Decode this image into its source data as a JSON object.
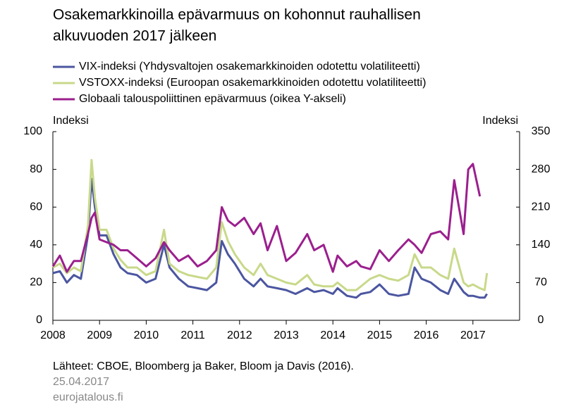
{
  "chart_data": {
    "type": "line",
    "title": [
      "Osakemarkkinoilla epävarmuus on kohonnut rauhallisen",
      "alkuvuoden 2017 jälkeen"
    ],
    "y_label": "Indeksi",
    "y2_label": "Indeksi",
    "source": "Lähteet: CBOE, Bloomberg ja Baker, Bloom ja Davis (2016).",
    "date": "25.04.2017",
    "site": "eurojatalous.fi",
    "x": [
      2008.0,
      2008.15,
      2008.3,
      2008.45,
      2008.6,
      2008.75,
      2008.83,
      2008.9,
      2009.0,
      2009.15,
      2009.3,
      2009.45,
      2009.6,
      2009.8,
      2010.0,
      2010.2,
      2010.38,
      2010.5,
      2010.7,
      2010.9,
      2011.1,
      2011.3,
      2011.5,
      2011.62,
      2011.75,
      2011.9,
      2012.1,
      2012.3,
      2012.45,
      2012.6,
      2012.8,
      2013.0,
      2013.2,
      2013.45,
      2013.6,
      2013.8,
      2014.0,
      2014.1,
      2014.3,
      2014.5,
      2014.6,
      2014.8,
      2015.0,
      2015.2,
      2015.4,
      2015.62,
      2015.75,
      2015.9,
      2016.1,
      2016.3,
      2016.47,
      2016.6,
      2016.8,
      2016.9,
      2017.0,
      2017.15,
      2017.25,
      2017.3
    ],
    "series": [
      {
        "name": "VIX-indeksi (Yhdysvaltojen osakemarkkinoiden odotettu volatiliteetti)",
        "color": "#4b56a0",
        "values": [
          25,
          26,
          20,
          24,
          22,
          45,
          75,
          60,
          45,
          45,
          35,
          28,
          25,
          24,
          20,
          22,
          40,
          28,
          22,
          18,
          17,
          16,
          20,
          42,
          35,
          30,
          22,
          18,
          22,
          18,
          17,
          16,
          14,
          17,
          15,
          16,
          14,
          17,
          13,
          12,
          14,
          15,
          19,
          14,
          13,
          14,
          28,
          22,
          20,
          16,
          14,
          22,
          15,
          13,
          13,
          12,
          12,
          14
        ]
      },
      {
        "name": "VSTOXX-indeksi (Euroopan osakemarkkinoiden odotettu volatiliteetti)",
        "color": "#c8d98a",
        "values": [
          28,
          30,
          25,
          28,
          26,
          50,
          85,
          65,
          48,
          48,
          38,
          32,
          28,
          28,
          24,
          26,
          48,
          30,
          26,
          24,
          23,
          22,
          28,
          52,
          42,
          35,
          28,
          24,
          30,
          24,
          22,
          20,
          19,
          24,
          19,
          18,
          18,
          20,
          16,
          16,
          18,
          22,
          24,
          22,
          21,
          24,
          35,
          28,
          28,
          24,
          22,
          38,
          20,
          18,
          19,
          17,
          16,
          25
        ]
      },
      {
        "name": "Globaali talouspoliittinen epävarmuus (oikea Y-akseli)",
        "color": "#9b1f8e",
        "axis": "y2",
        "values": [
          100,
          120,
          90,
          110,
          110,
          160,
          190,
          200,
          150,
          145,
          140,
          130,
          130,
          115,
          100,
          115,
          145,
          130,
          110,
          120,
          100,
          110,
          130,
          210,
          185,
          175,
          190,
          160,
          180,
          130,
          175,
          110,
          125,
          160,
          130,
          140,
          90,
          120,
          100,
          110,
          100,
          95,
          130,
          110,
          130,
          150,
          140,
          125,
          160,
          165,
          150,
          260,
          160,
          280,
          290,
          230,
          null,
          null
        ]
      }
    ],
    "xlim": [
      2008,
      2018
    ],
    "xticks": [
      2008,
      2009,
      2010,
      2011,
      2012,
      2013,
      2014,
      2015,
      2016,
      2017
    ],
    "ylim": [
      0,
      100
    ],
    "yticks": [
      0,
      20,
      40,
      60,
      80,
      100
    ],
    "y2lim": [
      0,
      350
    ],
    "y2ticks": [
      0,
      70,
      140,
      210,
      280,
      350
    ]
  }
}
